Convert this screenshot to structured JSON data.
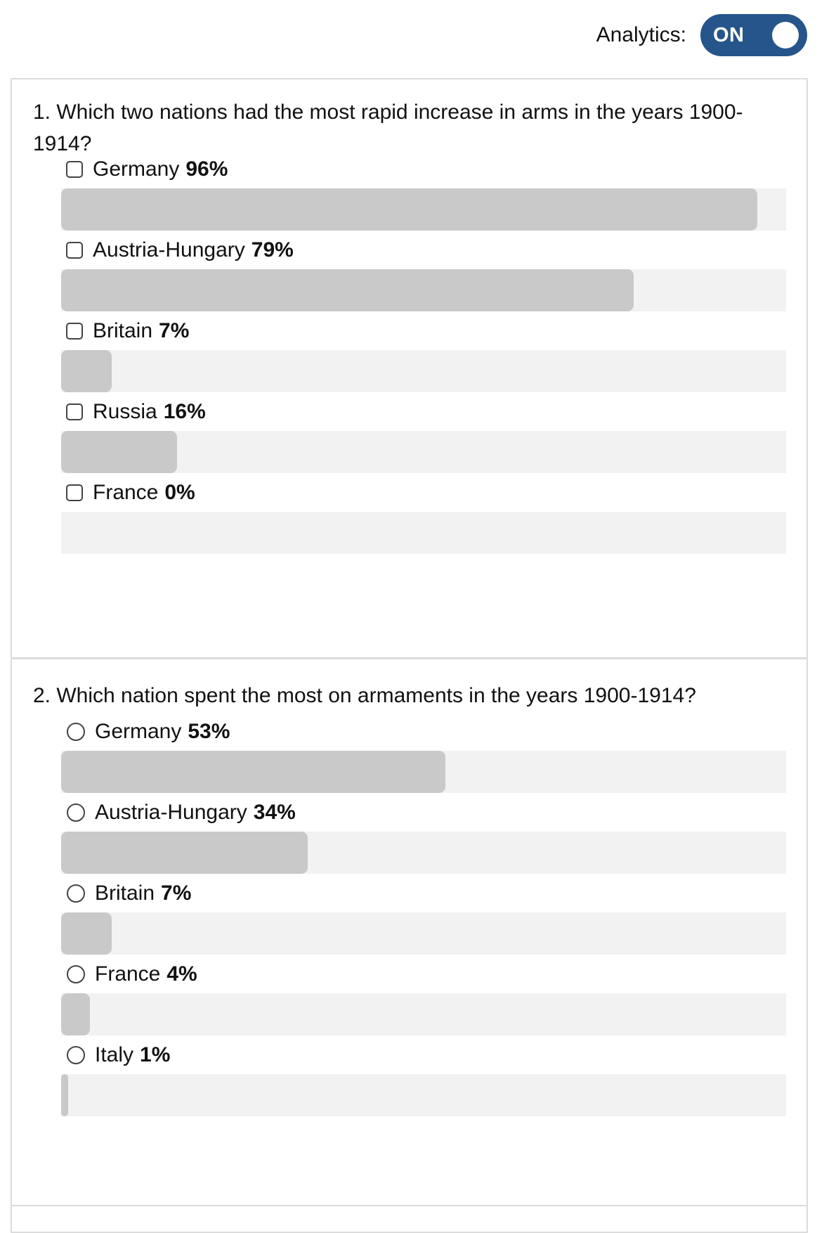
{
  "analytics": {
    "label": "Analytics:",
    "toggle_text": "ON"
  },
  "questions": [
    {
      "text": "1. Which two nations had the most rapid increase in arms in the years 1900-1914?",
      "type": "checkbox",
      "options": [
        {
          "label": "Germany",
          "pct_text": "96%",
          "fill": 0.96
        },
        {
          "label": "Austria-Hungary",
          "pct_text": "79%",
          "fill": 0.79
        },
        {
          "label": "Britain",
          "pct_text": "7%",
          "fill": 0.07
        },
        {
          "label": "Russia",
          "pct_text": "16%",
          "fill": 0.16
        },
        {
          "label": "France",
          "pct_text": "0%",
          "fill": 0.0
        }
      ]
    },
    {
      "text": "2. Which nation spent the most on armaments in the years 1900-1914?",
      "type": "radio",
      "options": [
        {
          "label": "Germany",
          "pct_text": "53%",
          "fill": 0.53
        },
        {
          "label": "Austria-Hungary",
          "pct_text": "34%",
          "fill": 0.34
        },
        {
          "label": "Britain",
          "pct_text": "7%",
          "fill": 0.07
        },
        {
          "label": "France",
          "pct_text": "4%",
          "fill": 0.04
        },
        {
          "label": "Italy",
          "pct_text": "1%",
          "fill": 0.01
        }
      ]
    }
  ],
  "colors": {
    "toggle_bg": "#25558a",
    "bar_fill": "#c9c9c9",
    "bar_track": "#f2f2f2"
  }
}
